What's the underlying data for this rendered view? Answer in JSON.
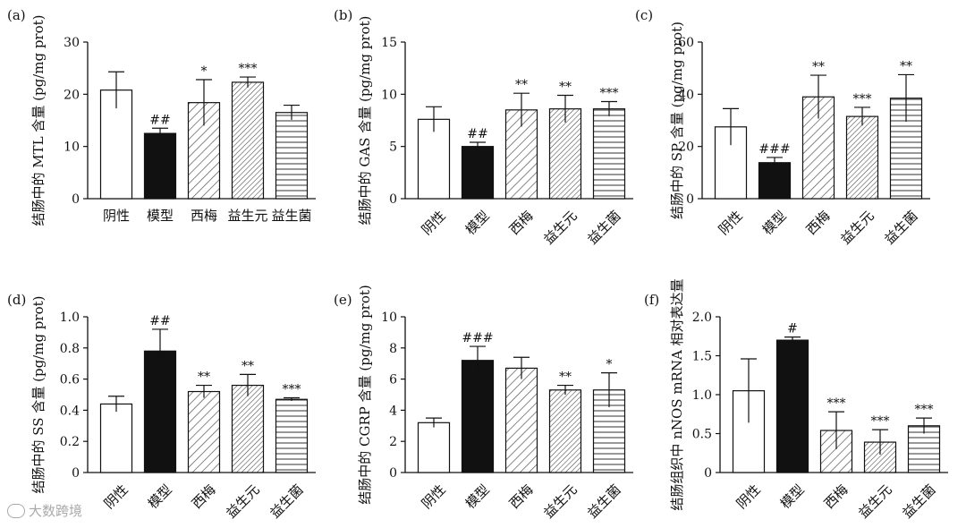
{
  "chart_data": [
    {
      "type": "bar",
      "panel": "(a)",
      "ylabel": "结肠中的 MTL 含量 (pg/mg prot)",
      "ylim": [
        0,
        30
      ],
      "yticks": [
        "0",
        "10",
        "20",
        "30"
      ],
      "categories": [
        "阴性",
        "模型",
        "西梅",
        "益生元",
        "益生菌"
      ],
      "values": [
        20.8,
        12.5,
        18.4,
        22.3,
        16.5
      ],
      "errors": [
        3.5,
        1.0,
        4.4,
        1.0,
        1.4
      ],
      "annotations": [
        "",
        "##",
        "*",
        "***",
        ""
      ],
      "rotate_labels": false
    },
    {
      "type": "bar",
      "panel": "(b)",
      "ylabel": "结肠中的 GAS 含量 (pg/mg prot)",
      "ylim": [
        0,
        15
      ],
      "yticks": [
        "0",
        "5",
        "10",
        "15"
      ],
      "categories": [
        "阴性",
        "模型",
        "西梅",
        "益生元",
        "益生菌"
      ],
      "values": [
        7.6,
        5.0,
        8.5,
        8.6,
        8.6
      ],
      "errors": [
        1.2,
        0.4,
        1.6,
        1.3,
        0.7
      ],
      "annotations": [
        "",
        "##",
        "**",
        "**",
        "***"
      ],
      "rotate_labels": true
    },
    {
      "type": "bar",
      "panel": "(c)",
      "ylabel": "结肠中的 SP 含量 (pg/mg prot)",
      "ylim": [
        0,
        60
      ],
      "yticks": [
        "0",
        "20",
        "40",
        "60"
      ],
      "categories": [
        "阴性",
        "模型",
        "西梅",
        "益生元",
        "益生菌"
      ],
      "values": [
        27.5,
        13.8,
        39.0,
        31.5,
        38.5
      ],
      "errors": [
        7.0,
        2.0,
        8.3,
        3.5,
        9.0
      ],
      "annotations": [
        "",
        "###",
        "**",
        "***",
        "**"
      ],
      "rotate_labels": true
    },
    {
      "type": "bar",
      "panel": "(d)",
      "ylabel": "结肠中的 SS 含量 (pg/mg prot)",
      "ylim": [
        0,
        1.0
      ],
      "yticks": [
        "0",
        "0.2",
        "0.4",
        "0.6",
        "0.8",
        "1.0"
      ],
      "categories": [
        "阴性",
        "模型",
        "西梅",
        "益生元",
        "益生菌"
      ],
      "values": [
        0.44,
        0.78,
        0.52,
        0.56,
        0.47
      ],
      "errors": [
        0.05,
        0.14,
        0.04,
        0.07,
        0.01
      ],
      "annotations": [
        "",
        "##",
        "**",
        "**",
        "***"
      ],
      "rotate_labels": true
    },
    {
      "type": "bar",
      "panel": "(e)",
      "ylabel": "结肠中的 CGRP 含量 (pg/mg prot)",
      "ylim": [
        0,
        10
      ],
      "yticks": [
        "0",
        "2",
        "4",
        "6",
        "8",
        "10"
      ],
      "categories": [
        "阴性",
        "模型",
        "西梅",
        "益生元",
        "益生菌"
      ],
      "values": [
        3.2,
        7.2,
        6.7,
        5.3,
        5.3
      ],
      "errors": [
        0.3,
        0.9,
        0.7,
        0.3,
        1.1
      ],
      "annotations": [
        "",
        "###",
        "",
        "**",
        "*"
      ],
      "rotate_labels": true
    },
    {
      "type": "bar",
      "panel": "(f)",
      "ylabel": "结肠组织中 nNOS mRNA 相对表达量",
      "ylim": [
        0,
        2.0
      ],
      "yticks": [
        "0",
        "0.5",
        "1.0",
        "1.5",
        "2.0"
      ],
      "categories": [
        "阴性",
        "模型",
        "西梅",
        "益生元",
        "益生菌"
      ],
      "values": [
        1.05,
        1.7,
        0.54,
        0.39,
        0.6
      ],
      "errors": [
        0.41,
        0.04,
        0.24,
        0.16,
        0.1
      ],
      "annotations": [
        "",
        "#",
        "***",
        "***",
        "***"
      ],
      "rotate_labels": true
    }
  ],
  "watermark": "大数跨境"
}
